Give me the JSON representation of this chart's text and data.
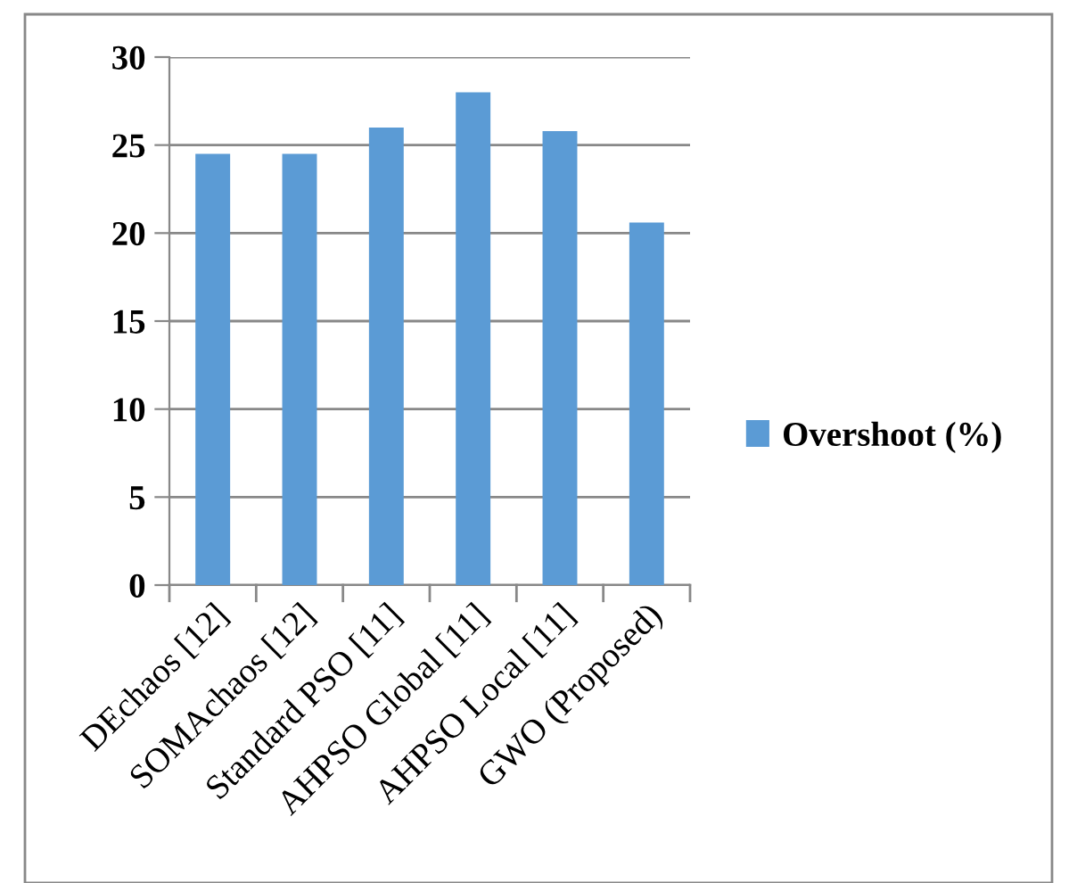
{
  "chart_data": {
    "type": "bar",
    "categories": [
      "DEchaos [12]",
      "SOMAchaos [12]",
      "Standard PSO [11]",
      "AHPSO Global [11]",
      "AHPSO Local [11]",
      "GWO (Proposed)"
    ],
    "series": [
      {
        "name": "Overshoot (%)",
        "color": "#5b9bd5",
        "values": [
          24.5,
          24.5,
          26.0,
          28.0,
          25.8,
          20.6
        ]
      }
    ],
    "ylim": [
      0,
      30
    ],
    "yticks": [
      0,
      5,
      10,
      15,
      20,
      25,
      30
    ],
    "grid": "y",
    "legend": "right"
  }
}
